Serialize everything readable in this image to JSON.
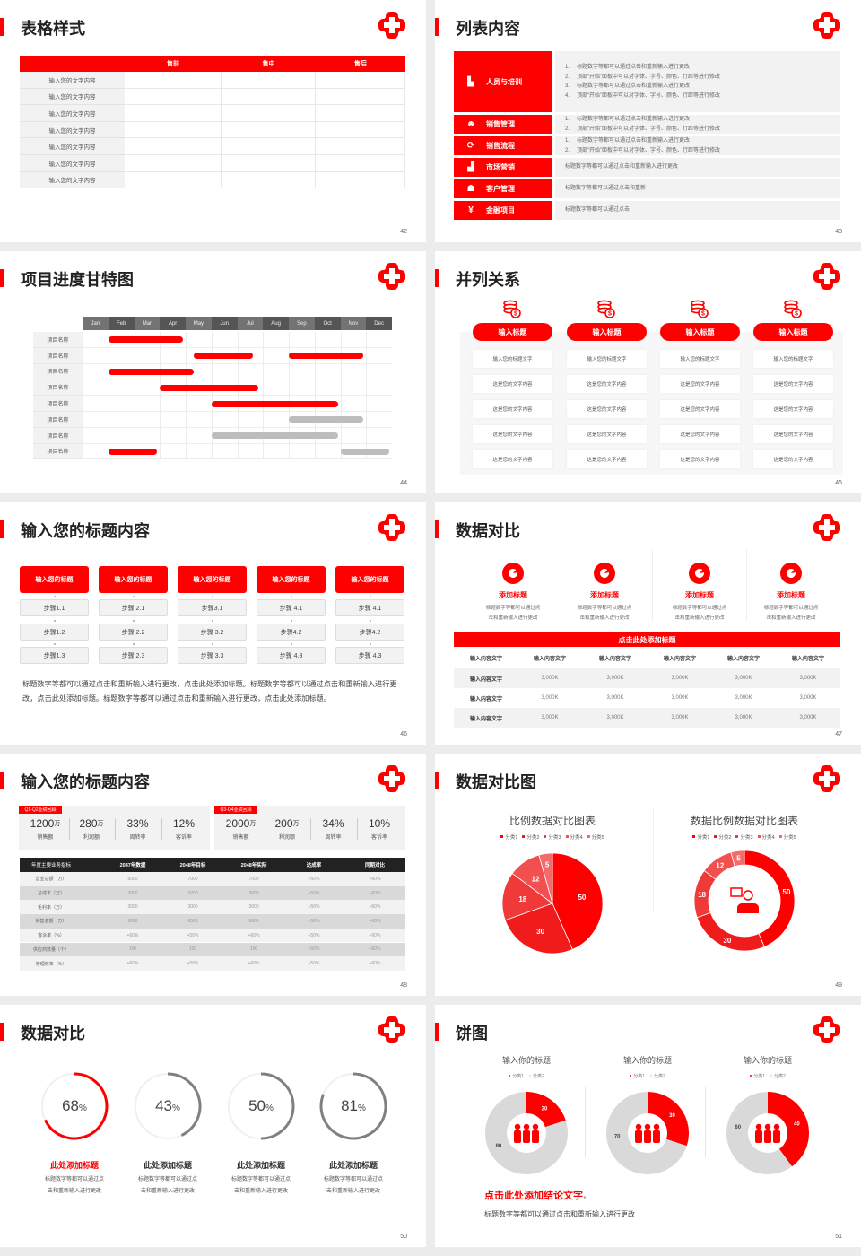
{
  "colors": {
    "accent": "#ff0000",
    "gray": "#d9d9d9",
    "dark": "#222222"
  },
  "slides": [
    {
      "page": "42",
      "title": "表格样式",
      "table": {
        "headers": [
          "",
          "售前",
          "售中",
          "售后"
        ],
        "rows": [
          "输入您的文字内容",
          "输入您的文字内容",
          "输入您的文字内容",
          "输入您的文字内容",
          "输入您的文字内容",
          "输入您的文字内容",
          "输入您的文字内容"
        ]
      }
    },
    {
      "page": "43",
      "title": "列表内容",
      "items": [
        {
          "label": "人员与培训",
          "icon": "training-icon",
          "lines": [
            {
              "num": "1.",
              "text": "标题数字等都可以通过点击和重新输入进行更改"
            },
            {
              "num": "2.",
              "text": "顶部“开始”面板中可以对字体、字号、颜色、行距等进行修改"
            },
            {
              "num": "3.",
              "text": "标题数字等都可以通过点击和重新输入进行更改"
            },
            {
              "num": "4.",
              "text": "顶部“开始”面板中可以对字体、字号、颜色、行距等进行修改"
            }
          ]
        },
        {
          "label": "销售管理",
          "icon": "sales-manager-icon",
          "lines": [
            {
              "num": "1.",
              "text": "标题数字等都可以通过点击和重新输入进行更改"
            },
            {
              "num": "2.",
              "text": "顶部“开始”面板中可以对字体、字号、颜色、行距等进行修改"
            }
          ]
        },
        {
          "label": "销售流程",
          "icon": "process-cycle-icon",
          "lines": [
            {
              "num": "1.",
              "text": "标题数字等都可以通过点击和重新输入进行更改"
            },
            {
              "num": "2.",
              "text": "顶部“开始”面板中可以对字体、字号、颜色、行距等进行修改"
            }
          ]
        },
        {
          "label": "市场营销",
          "icon": "bar-chart-icon",
          "lines": [
            {
              "num": "",
              "text": "标题数字等都可以通过点击和重新输入进行更改"
            }
          ]
        },
        {
          "label": "客户管理",
          "icon": "customers-icon",
          "lines": [
            {
              "num": "",
              "text": "标题数字等都可以通过点击和重新"
            }
          ]
        },
        {
          "label": "金融项目",
          "icon": "finance-hand-icon",
          "lines": [
            {
              "num": "",
              "text": "标题数字等都可以通过点击"
            }
          ]
        }
      ]
    },
    {
      "page": "44",
      "title": "项目进度甘特图",
      "gantt": {
        "months": [
          "Jan",
          "Feb",
          "Mar",
          "Apr",
          "May",
          "Jun",
          "Jul",
          "Aug",
          "Sep",
          "Oct",
          "Nov",
          "Dec"
        ],
        "rows": [
          {
            "label": "项目名称",
            "bars": [
              {
                "start": 1.0,
                "end": 3.9,
                "status": "active"
              }
            ]
          },
          {
            "label": "项目名称",
            "bars": [
              {
                "start": 4.3,
                "end": 6.6,
                "status": "active"
              },
              {
                "start": 8.0,
                "end": 10.9,
                "status": "active"
              }
            ]
          },
          {
            "label": "项目名称",
            "bars": [
              {
                "start": 1.0,
                "end": 4.3,
                "status": "active"
              }
            ]
          },
          {
            "label": "项目名称",
            "bars": [
              {
                "start": 3.0,
                "end": 6.8,
                "status": "active"
              }
            ]
          },
          {
            "label": "项目名称",
            "bars": [
              {
                "start": 5.0,
                "end": 9.9,
                "status": "active"
              }
            ]
          },
          {
            "label": "项目名称",
            "bars": [
              {
                "start": 8.0,
                "end": 10.9,
                "status": "planned"
              }
            ]
          },
          {
            "label": "项目名称",
            "bars": [
              {
                "start": 5.0,
                "end": 9.9,
                "status": "planned"
              }
            ]
          },
          {
            "label": "项目名称",
            "bars": [
              {
                "start": 1.0,
                "end": 2.9,
                "status": "active"
              },
              {
                "start": 10.0,
                "end": 11.9,
                "status": "planned"
              }
            ]
          }
        ]
      }
    },
    {
      "page": "45",
      "title": "并列关系",
      "columns": [
        {
          "header": "输入标题",
          "icon": "coins-icon",
          "cells": [
            "输入您的标题文字",
            "这是您的文字内容",
            "这是您的文字内容",
            "这是您的文字内容",
            "这是您的文字内容"
          ]
        },
        {
          "header": "输入标题",
          "icon": "coins-icon",
          "cells": [
            "输入您的标题文字",
            "这是您的文字内容",
            "这是您的文字内容",
            "这是您的文字内容",
            "这是您的文字内容"
          ]
        },
        {
          "header": "输入标题",
          "icon": "coins-icon",
          "cells": [
            "输入您的标题文字",
            "这是您的文字内容",
            "这是您的文字内容",
            "这是您的文字内容",
            "这是您的文字内容"
          ]
        },
        {
          "header": "输入标题",
          "icon": "coins-icon",
          "cells": [
            "输入您的标题文字",
            "这是您的文字内容",
            "这是您的文字内容",
            "这是您的文字内容",
            "这是您的文字内容"
          ]
        }
      ]
    },
    {
      "page": "46",
      "title": "输入您的标题内容",
      "columns": [
        {
          "header": "输入您的标题",
          "steps": [
            "步骤1.1",
            "步骤1.2",
            "步骤1.3"
          ]
        },
        {
          "header": "输入您的标题",
          "steps": [
            "步骤 2.1",
            "步骤 2.2",
            "步骤 2.3"
          ]
        },
        {
          "header": "输入您的标题",
          "steps": [
            "步骤3.1",
            "步骤 3.2",
            "步骤 3.3"
          ]
        },
        {
          "header": "输入您的标题",
          "steps": [
            "步骤 4.1",
            "步骤4.2",
            "步骤 4.3"
          ]
        },
        {
          "header": "输入您的标题",
          "steps": [
            "步骤 4.1",
            "步骤4.2",
            "步骤 4.3"
          ]
        }
      ],
      "paragraph": "标题数字等都可以通过点击和重新输入进行更改，点击此处添加标题。标题数字等都可以通过点击和重新输入进行更改，点击此处添加标题。标题数字等都可以通过点击和重新输入进行更改，点击此处添加标题。"
    },
    {
      "page": "47",
      "title": "数据对比",
      "features": [
        {
          "title": "添加标题",
          "icon": "pie-chart-icon",
          "desc": [
            "标题数字等都可以通过点",
            "击和重新输入进行更改"
          ]
        },
        {
          "title": "添加标题",
          "icon": "pie-chart-icon",
          "desc": [
            "标题数字等都可以通过点",
            "击和重新输入进行更改"
          ]
        },
        {
          "title": "添加标题",
          "icon": "pie-chart-icon",
          "desc": [
            "标题数字等都可以通过点",
            "击和重新输入进行更改"
          ]
        },
        {
          "title": "添加标题",
          "icon": "pie-chart-icon",
          "desc": [
            "标题数字等都可以通过点",
            "击和重新输入进行更改"
          ]
        }
      ],
      "bar_title": "点击此处添加标题",
      "table": {
        "headers": [
          "输入内容文字",
          "输入内容文字",
          "输入内容文字",
          "输入内容文字",
          "输入内容文字",
          "输入内容文字"
        ],
        "rows": [
          [
            "输入内容文字",
            "3,000K",
            "3,000K",
            "3,000K",
            "3,000K",
            "3,000K"
          ],
          [
            "输入内容文字",
            "3,000K",
            "3,000K",
            "3,000K",
            "3,000K",
            "3,000K"
          ],
          [
            "输入内容文字",
            "3,000K",
            "3,000K",
            "3,000K",
            "3,000K",
            "3,000K"
          ]
        ]
      }
    },
    {
      "page": "48",
      "title": "输入您的标题内容",
      "panels": [
        {
          "tag": "Q1-Q2业绩回顾",
          "kpis": [
            {
              "value": "1200",
              "unit": "万",
              "label": "销售额"
            },
            {
              "value": "280",
              "unit": "万",
              "label": "利润额"
            },
            {
              "value": "33%",
              "unit": "",
              "label": "周转率"
            },
            {
              "value": "12%",
              "unit": "",
              "label": "客诉率"
            }
          ]
        },
        {
          "tag": "Q3-Q4业绩回顾",
          "kpis": [
            {
              "value": "2000",
              "unit": "万",
              "label": "销售额"
            },
            {
              "value": "200",
              "unit": "万",
              "label": "利润额"
            },
            {
              "value": "34%",
              "unit": "",
              "label": "周转率"
            },
            {
              "value": "10%",
              "unit": "",
              "label": "客诉率"
            }
          ]
        }
      ],
      "table": {
        "headers": [
          "年度主要业务指标",
          "2047年数据",
          "2048年目标",
          "2048年实际",
          "达成率",
          "同期对比"
        ],
        "rows": [
          [
            "营业总额（万）",
            "6000",
            "7000",
            "7000",
            "+50%",
            "+60%"
          ],
          [
            "总成本（万）",
            "3000",
            "3200",
            "3000",
            "+50%",
            "+60%"
          ],
          [
            "毛利率（万）",
            "3000",
            "3000",
            "3000",
            "+50%",
            "+60%"
          ],
          [
            "销售总额（万）",
            "6000",
            "6500",
            "6000",
            "+50%",
            "+60%"
          ],
          [
            "客诉率（%）",
            "+60%",
            "+50%",
            "+60%",
            "+50%",
            "+60%"
          ],
          [
            "供应商数量（个）",
            "100",
            "100",
            "100",
            "+50%",
            "+60%"
          ],
          [
            "管理效率（%）",
            "+60%",
            "+50%",
            "+60%",
            "+50%",
            "+60%"
          ]
        ]
      }
    },
    {
      "page": "49",
      "title": "数据对比图",
      "charts": [
        {
          "type": "pie",
          "title": "比例数据对比图表",
          "categories": [
            "分类1",
            "分类2",
            "分类3",
            "分类4",
            "分类5"
          ],
          "values": [
            50,
            30,
            18,
            12,
            5
          ],
          "colors": [
            "#ff0000",
            "#f01c1c",
            "#f03a3a",
            "#f25050",
            "#f56a6a"
          ]
        },
        {
          "type": "donut",
          "title": "数据比例数据对比图表",
          "center_icon": "person-chat-icon",
          "categories": [
            "分类1",
            "分类2",
            "分类3",
            "分类4",
            "分类5"
          ],
          "values": [
            50,
            30,
            18,
            12,
            5
          ],
          "colors": [
            "#ff0000",
            "#f01c1c",
            "#f03a3a",
            "#f25050",
            "#f56a6a"
          ]
        }
      ]
    },
    {
      "page": "50",
      "title": "数据对比",
      "rings": [
        {
          "value": 68,
          "unit": "%",
          "title": "此处添加标题",
          "highlight": true,
          "desc": [
            "标题数字等都可以通过点",
            "击和重新输入进行更改"
          ]
        },
        {
          "value": 43,
          "unit": "%",
          "title": "此处添加标题",
          "highlight": false,
          "desc": [
            "标题数字等都可以通过点",
            "击和重新输入进行更改"
          ]
        },
        {
          "value": 50,
          "unit": "%",
          "title": "此处添加标题",
          "highlight": false,
          "desc": [
            "标题数字等都可以通过点",
            "击和重新输入进行更改"
          ]
        },
        {
          "value": 81,
          "unit": "%",
          "title": "此处添加标题",
          "highlight": false,
          "desc": [
            "标题数字等都可以通过点",
            "击和重新输入进行更改"
          ]
        }
      ]
    },
    {
      "page": "51",
      "title": "饼图",
      "charts": [
        {
          "type": "donut",
          "title": "输入你的标题",
          "center_icon": "team-icon",
          "categories": [
            "分类1",
            "分类2"
          ],
          "values": [
            20,
            80
          ],
          "colors": [
            "#ff0000",
            "#d9d9d9"
          ]
        },
        {
          "type": "donut",
          "title": "输入你的标题",
          "center_icon": "team-icon",
          "categories": [
            "分类1",
            "分类2"
          ],
          "values": [
            30,
            70
          ],
          "colors": [
            "#ff0000",
            "#d9d9d9"
          ]
        },
        {
          "type": "donut",
          "title": "输入你的标题",
          "center_icon": "team-icon",
          "categories": [
            "分类1",
            "分类2"
          ],
          "values": [
            40,
            60
          ],
          "colors": [
            "#ff0000",
            "#d9d9d9"
          ]
        }
      ],
      "conclusion": "点击此处添加结论文字",
      "conclusion_punct": "，",
      "desc": "标题数字等都可以通过点击和重新输入进行更改"
    }
  ]
}
